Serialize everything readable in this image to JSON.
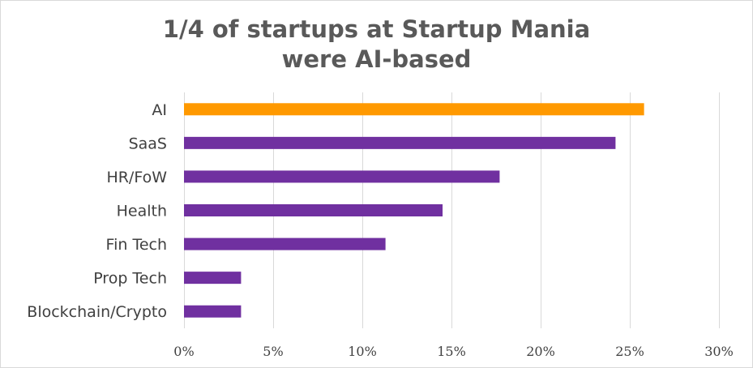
{
  "chart_data": {
    "type": "bar",
    "orientation": "horizontal",
    "title_line1": "1/4 of startups at Startup Mania",
    "title_line2": "were AI-based",
    "categories": [
      "AI",
      "SaaS",
      "HR/FoW",
      "Health",
      "Fin Tech",
      "Prop Tech",
      "Blockchain/Crypto"
    ],
    "values": [
      25.8,
      24.2,
      17.7,
      14.5,
      11.3,
      3.2,
      3.2
    ],
    "colors": [
      "#ff9900",
      "#7030a0",
      "#7030a0",
      "#7030a0",
      "#7030a0",
      "#7030a0",
      "#7030a0"
    ],
    "xlim": [
      0,
      30
    ],
    "xticks": [
      0,
      5,
      10,
      15,
      20,
      25,
      30
    ],
    "xtick_labels": [
      "0%",
      "5%",
      "10%",
      "15%",
      "20%",
      "25%",
      "30%"
    ],
    "grid": "vertical",
    "xlabel": "",
    "ylabel": ""
  },
  "colors": {
    "title": "#595959",
    "grid": "#d9d9d9",
    "text": "#404040"
  }
}
